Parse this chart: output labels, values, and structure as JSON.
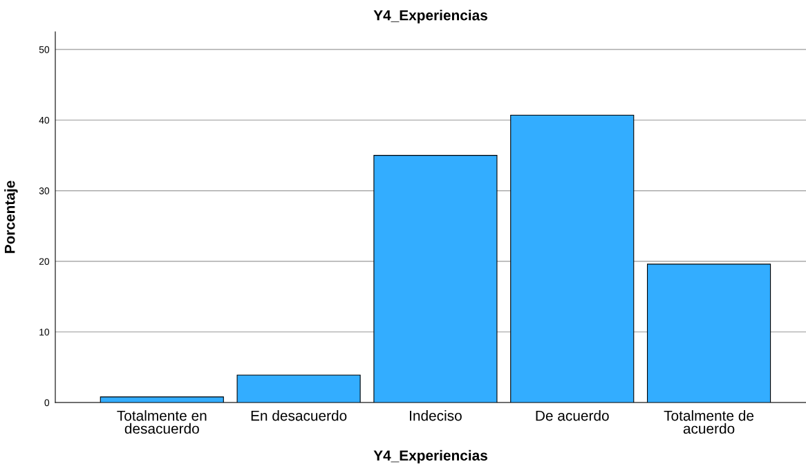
{
  "chart_data": {
    "type": "bar",
    "title": "Y4_Experiencias",
    "xlabel": "Y4_Experiencias",
    "ylabel": "Porcentaje",
    "categories": [
      "Totalmente en\ndesacuerdo",
      "En desacuerdo",
      "Indeciso",
      "De acuerdo",
      "Totalmente de\nacuerdo"
    ],
    "values": [
      0.8,
      3.9,
      35.0,
      40.7,
      19.6
    ],
    "color": "#33adff",
    "ylim": [
      0,
      52.5
    ],
    "yticks": [
      0,
      10,
      20,
      30,
      40,
      50
    ],
    "grid": "y"
  }
}
